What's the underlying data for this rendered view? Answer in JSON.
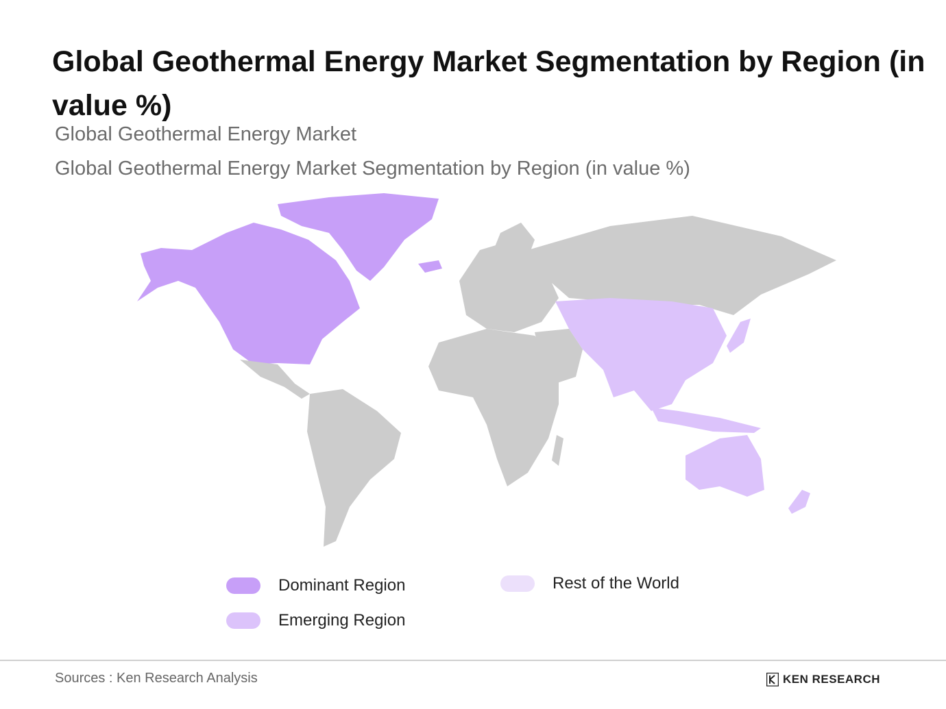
{
  "header": {
    "title": "Global Geothermal Energy Market Segmentation by Region (in value %)",
    "subtitle1": "Global Geothermal Energy Market",
    "subtitle2": "Global Geothermal Energy Market Segmentation by Region (in value %)"
  },
  "colors": {
    "dominant": "#c79ff8",
    "emerging": "#dcc3fb",
    "rest": "#ece0fb",
    "land": "#cccccc"
  },
  "map": {
    "dominant_regions": [
      "North America",
      "Greenland"
    ],
    "emerging_regions": [
      "China",
      "India",
      "Southeast Asia",
      "Japan",
      "Australia",
      "New Zealand",
      "Central Asia"
    ],
    "rest_regions": [
      "South America",
      "Europe",
      "Russia",
      "Africa",
      "Middle East"
    ]
  },
  "legend": {
    "dominant": "Dominant Region",
    "emerging": "Emerging Region",
    "rest": "Rest of the World"
  },
  "footer": {
    "source": "Sources : Ken Research Analysis",
    "brand": "KEN RESEARCH"
  }
}
